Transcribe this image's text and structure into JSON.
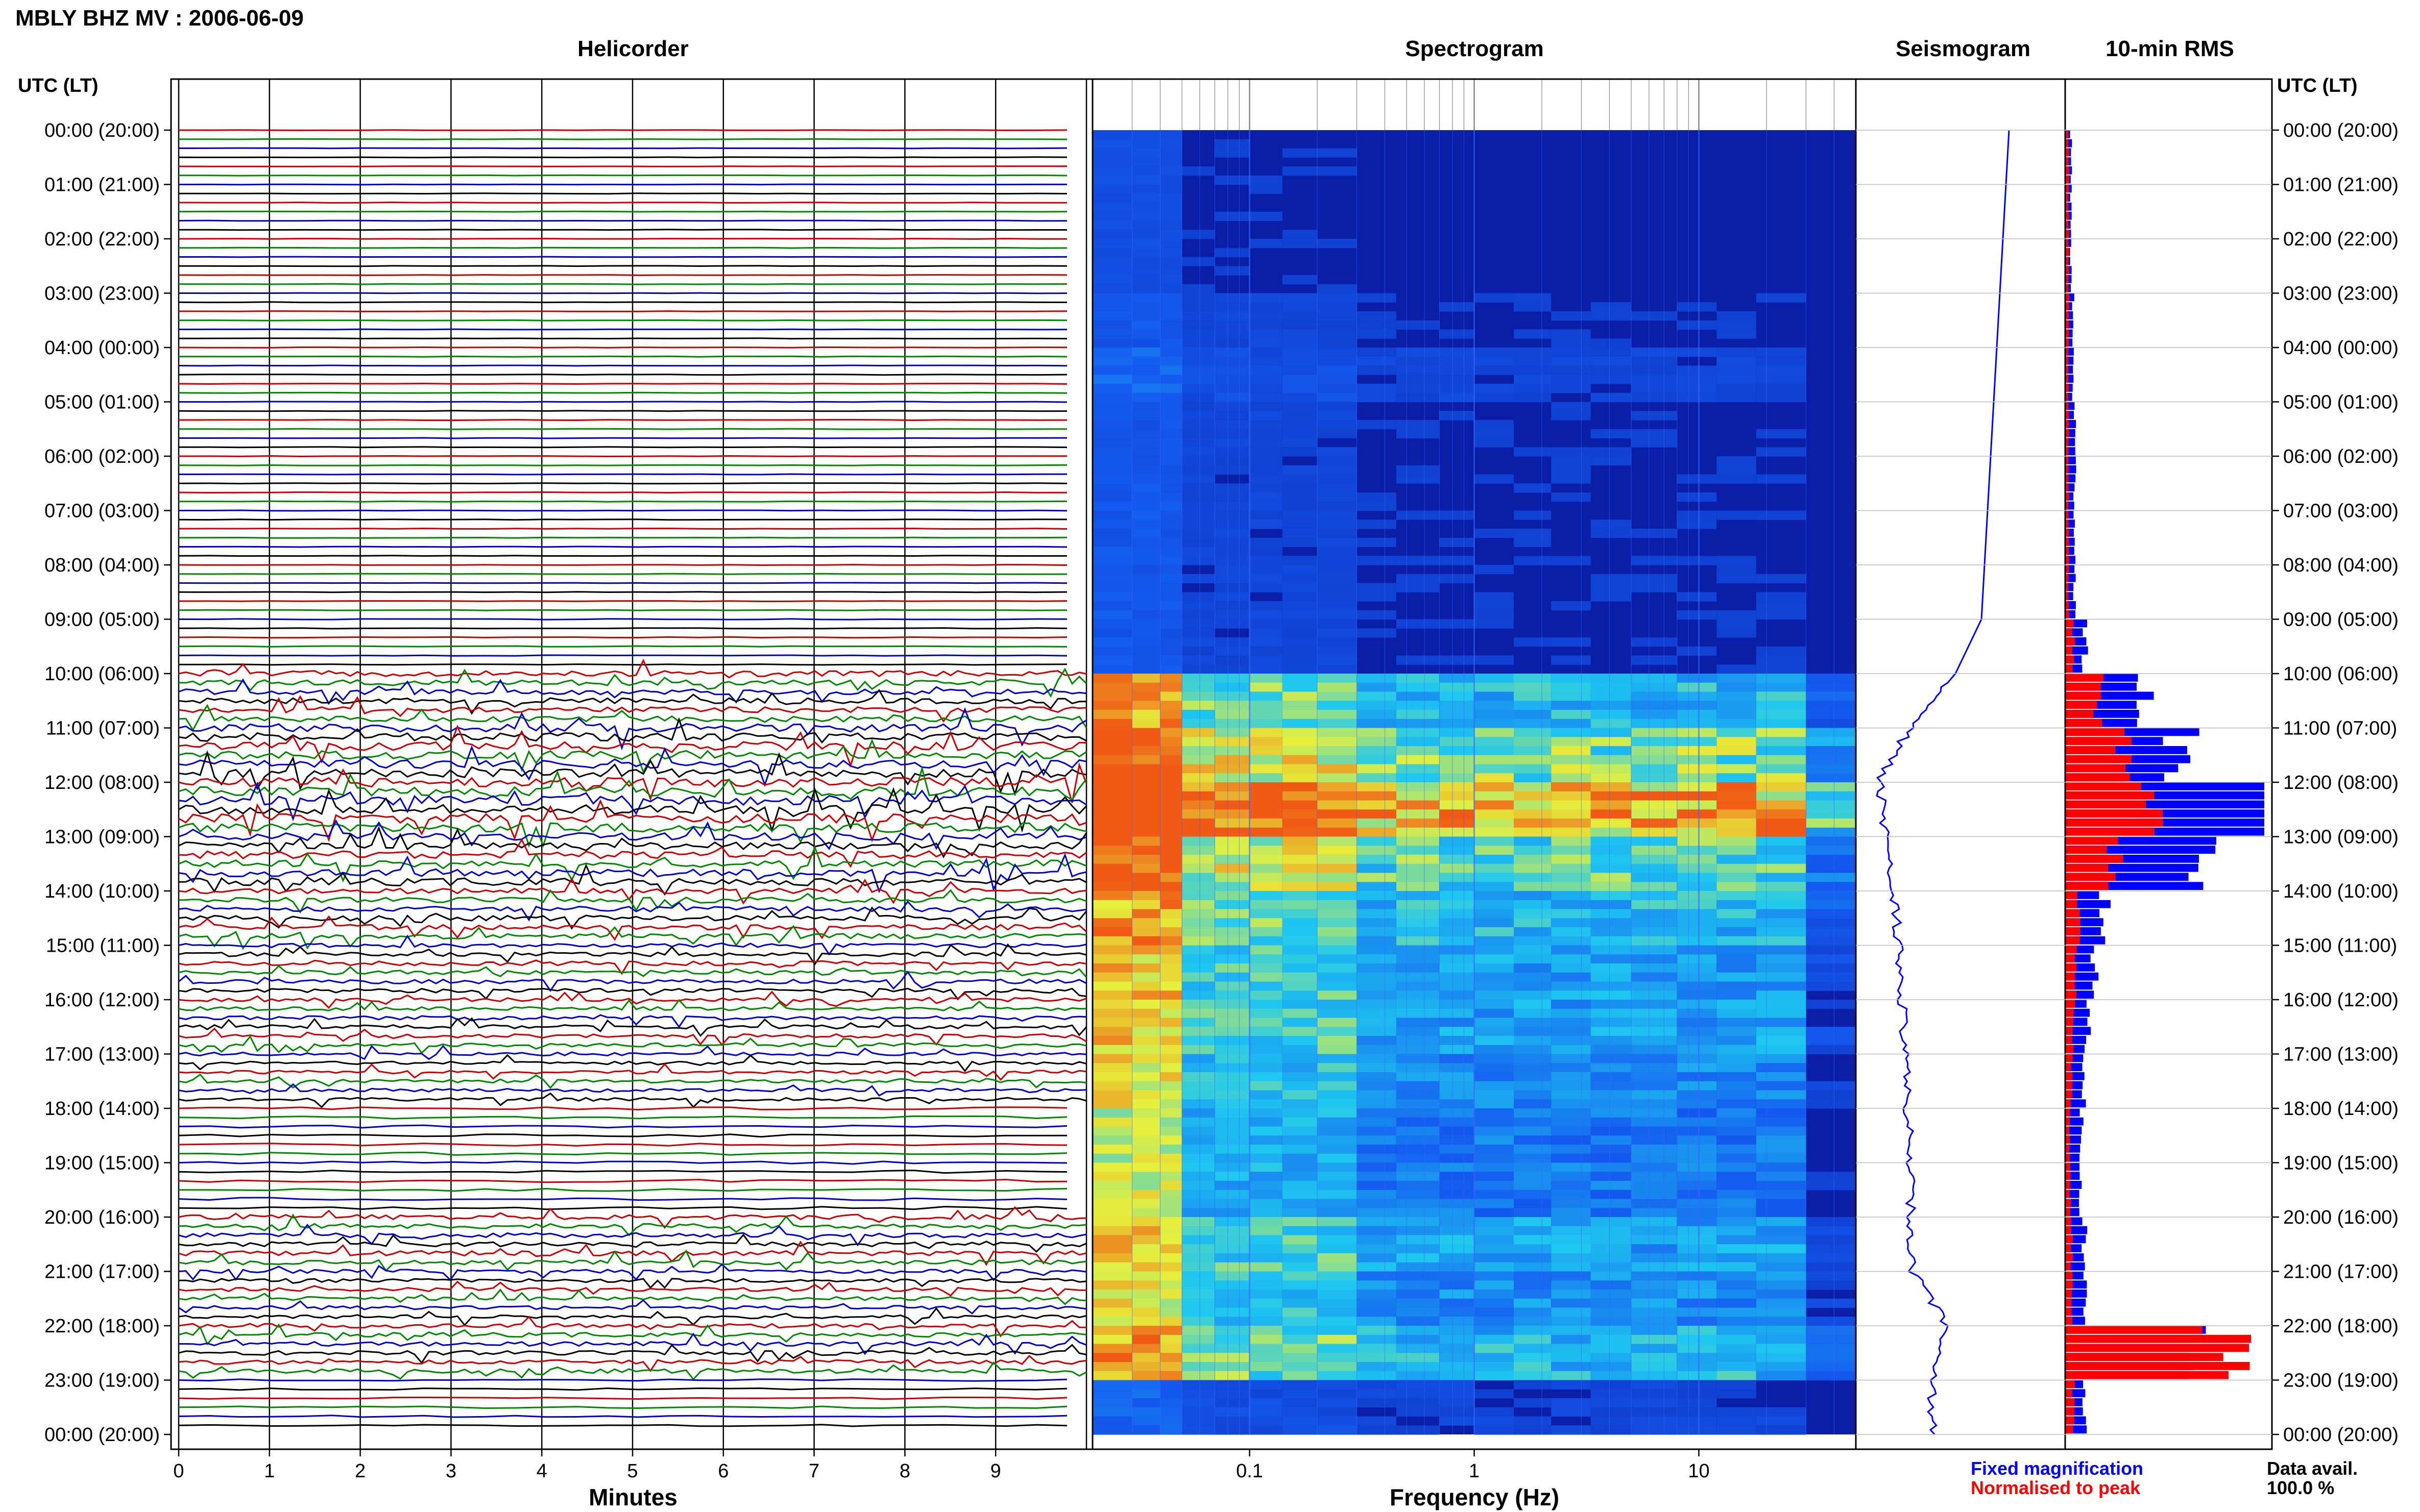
{
  "header": {
    "station_title": "MBLY BHZ MV : 2006-06-09",
    "utc_label_left": "UTC (LT)",
    "utc_label_right": "UTC (LT)"
  },
  "panels": {
    "helicorder": "Helicorder",
    "spectrogram": "Spectrogram",
    "seismogram": "Seismogram",
    "rms": "10-min RMS"
  },
  "axes": {
    "minutes_label": "Minutes",
    "minute_ticks": [
      "0",
      "1",
      "2",
      "3",
      "4",
      "5",
      "6",
      "7",
      "8",
      "9"
    ],
    "frequency_label": "Frequency (Hz)",
    "frequency_ticks": [
      "0.1",
      "1",
      "10"
    ]
  },
  "time_labels": [
    "00:00 (20:00)",
    "01:00 (21:00)",
    "02:00 (22:00)",
    "03:00 (23:00)",
    "04:00 (00:00)",
    "05:00 (01:00)",
    "06:00 (02:00)",
    "07:00 (03:00)",
    "08:00 (04:00)",
    "09:00 (05:00)",
    "10:00 (06:00)",
    "11:00 (07:00)",
    "12:00 (08:00)",
    "13:00 (09:00)",
    "14:00 (10:00)",
    "15:00 (11:00)",
    "16:00 (12:00)",
    "17:00 (13:00)",
    "18:00 (14:00)",
    "19:00 (15:00)",
    "20:00 (16:00)",
    "21:00 (17:00)",
    "22:00 (18:00)",
    "23:00 (19:00)",
    "00:00 (20:00)"
  ],
  "legend": {
    "fixed": "Fixed magnification",
    "normalised": "Normalised to peak",
    "data_avail_label": "Data avail.",
    "data_avail_value": "100.0 %"
  },
  "colors": {
    "trace_red": "#cc0000",
    "trace_green": "#008800",
    "trace_blue": "#0000cc",
    "trace_black": "#000000",
    "spectro_bg": "#0a1ea8",
    "fixed_mag": "#0000ff",
    "normalised": "#ff0000"
  },
  "chart_data": [
    {
      "type": "line",
      "title": "Helicorder",
      "xlabel": "Minutes",
      "ylabel": "UTC (LT)",
      "xlim": [
        0,
        10
      ],
      "rows_per_hour": 6,
      "row_colors": [
        "red",
        "green",
        "blue",
        "black"
      ],
      "amplitude_profile_by_hour": [
        0.05,
        0.05,
        0.05,
        0.05,
        0.06,
        0.06,
        0.06,
        0.06,
        0.06,
        0.08,
        0.6,
        0.9,
        1.0,
        0.8,
        0.55,
        0.45,
        0.4,
        0.35,
        0.3,
        0.3,
        0.5,
        0.4,
        0.45,
        0.2
      ],
      "grid": true
    },
    {
      "type": "heatmap",
      "title": "Spectrogram",
      "xlabel": "Frequency (Hz)",
      "xscale": "log",
      "xlim": [
        0.02,
        50
      ],
      "hours": 24,
      "intensity_by_hour": [
        0.15,
        0.15,
        0.15,
        0.2,
        0.25,
        0.2,
        0.2,
        0.2,
        0.2,
        0.2,
        0.6,
        0.75,
        0.95,
        0.7,
        0.6,
        0.55,
        0.55,
        0.5,
        0.45,
        0.45,
        0.55,
        0.5,
        0.6,
        0.25
      ],
      "grid": true
    },
    {
      "type": "line",
      "title": "Seismogram",
      "description_values": "normalised envelope per 10 minutes",
      "values_by_hour": [
        0.1,
        0.12,
        0.14,
        0.16,
        0.18,
        0.2,
        0.22,
        0.24,
        0.26,
        0.28,
        0.45,
        0.75,
        0.95,
        0.9,
        0.85,
        0.82,
        0.8,
        0.78,
        0.76,
        0.75,
        0.74,
        0.73,
        0.5,
        0.6
      ],
      "grid": true
    },
    {
      "type": "bar",
      "title": "10-min RMS",
      "orientation": "horizontal",
      "series": [
        {
          "name": "Fixed magnification",
          "values_by_hour": [
            0.03,
            0.03,
            0.03,
            0.04,
            0.04,
            0.05,
            0.05,
            0.05,
            0.05,
            0.1,
            0.4,
            0.6,
            1.0,
            0.7,
            0.2,
            0.15,
            0.12,
            0.1,
            0.08,
            0.08,
            0.1,
            0.1,
            0.7,
            0.1
          ]
        },
        {
          "name": "Normalised to peak",
          "values_by_hour": [
            0.02,
            0.02,
            0.02,
            0.02,
            0.02,
            0.02,
            0.02,
            0.02,
            0.02,
            0.05,
            0.2,
            0.35,
            0.55,
            0.3,
            0.08,
            0.06,
            0.05,
            0.04,
            0.03,
            0.03,
            0.04,
            0.04,
            1.0,
            0.05
          ]
        }
      ],
      "grid": true
    }
  ]
}
